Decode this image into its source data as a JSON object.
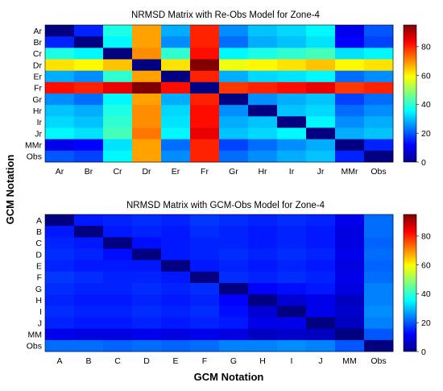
{
  "ylabel": "GCM Notation",
  "xlabel": "GCM Notation",
  "chart_data": [
    {
      "type": "heatmap",
      "title": "NRMSD Matrix with Re-Obs Model for Zone-4",
      "x_categories": [
        "Ar",
        "Br",
        "Cr",
        "Dr",
        "Er",
        "Fr",
        "Gr",
        "Hr",
        "Ir",
        "Jr",
        "MMr",
        "Obs"
      ],
      "y_categories": [
        "Ar",
        "Br",
        "Cr",
        "Dr",
        "Er",
        "Fr",
        "Gr",
        "Hr",
        "Ir",
        "Jr",
        "MMr",
        "Obs"
      ],
      "colorbar": {
        "min": 0,
        "max": 95,
        "ticks": [
          0,
          20,
          40,
          60,
          80
        ],
        "colormap": "jet"
      },
      "values": [
        [
          0,
          15,
          38,
          68,
          28,
          80,
          25,
          30,
          32,
          35,
          10,
          20
        ],
        [
          15,
          0,
          35,
          68,
          25,
          80,
          22,
          28,
          30,
          33,
          12,
          18
        ],
        [
          38,
          35,
          0,
          70,
          40,
          82,
          35,
          38,
          40,
          42,
          33,
          35
        ],
        [
          62,
          60,
          65,
          0,
          62,
          95,
          58,
          60,
          62,
          65,
          60,
          62
        ],
        [
          28,
          25,
          40,
          68,
          0,
          80,
          28,
          32,
          33,
          35,
          22,
          25
        ],
        [
          82,
          80,
          85,
          95,
          82,
          0,
          78,
          80,
          82,
          85,
          78,
          80
        ],
        [
          25,
          22,
          35,
          68,
          28,
          80,
          0,
          25,
          28,
          30,
          18,
          22
        ],
        [
          30,
          28,
          38,
          70,
          32,
          82,
          25,
          0,
          30,
          32,
          22,
          25
        ],
        [
          32,
          30,
          40,
          70,
          33,
          82,
          28,
          30,
          0,
          35,
          25,
          28
        ],
        [
          35,
          33,
          42,
          72,
          35,
          85,
          30,
          32,
          35,
          0,
          28,
          30
        ],
        [
          10,
          12,
          33,
          68,
          22,
          80,
          18,
          22,
          25,
          28,
          0,
          15
        ],
        [
          20,
          18,
          35,
          68,
          25,
          80,
          22,
          25,
          28,
          30,
          15,
          0
        ]
      ]
    },
    {
      "type": "heatmap",
      "title": "NRMSD Matrix with GCM-Obs Model for Zone-4",
      "x_categories": [
        "A",
        "B",
        "C",
        "D",
        "E",
        "F",
        "G",
        "H",
        "I",
        "J",
        "MM",
        "Obs"
      ],
      "y_categories": [
        "A",
        "B",
        "C",
        "D",
        "E",
        "F",
        "G",
        "H",
        "I",
        "J",
        "MM",
        "Obs"
      ],
      "colorbar": {
        "min": 0,
        "max": 95,
        "ticks": [
          0,
          20,
          40,
          60,
          80
        ],
        "colormap": "jet"
      },
      "values": [
        [
          0,
          14,
          15,
          16,
          15,
          17,
          16,
          15,
          16,
          15,
          10,
          22
        ],
        [
          14,
          0,
          14,
          15,
          14,
          16,
          15,
          14,
          15,
          14,
          9,
          22
        ],
        [
          15,
          14,
          0,
          13,
          14,
          15,
          15,
          14,
          15,
          14,
          9,
          21
        ],
        [
          16,
          15,
          13,
          0,
          14,
          15,
          16,
          15,
          16,
          15,
          10,
          22
        ],
        [
          15,
          14,
          14,
          14,
          0,
          14,
          15,
          14,
          15,
          14,
          9,
          21
        ],
        [
          17,
          16,
          15,
          15,
          14,
          0,
          16,
          15,
          16,
          15,
          10,
          22
        ],
        [
          16,
          15,
          15,
          16,
          15,
          16,
          0,
          12,
          13,
          14,
          9,
          24
        ],
        [
          15,
          14,
          14,
          15,
          14,
          15,
          12,
          0,
          8,
          10,
          6,
          24
        ],
        [
          16,
          15,
          15,
          16,
          15,
          16,
          13,
          8,
          0,
          10,
          7,
          25
        ],
        [
          15,
          14,
          14,
          15,
          14,
          15,
          14,
          10,
          10,
          0,
          6,
          24
        ],
        [
          10,
          9,
          9,
          10,
          9,
          10,
          9,
          6,
          7,
          6,
          0,
          20
        ],
        [
          22,
          22,
          21,
          22,
          21,
          22,
          24,
          24,
          25,
          24,
          20,
          0
        ]
      ]
    }
  ]
}
